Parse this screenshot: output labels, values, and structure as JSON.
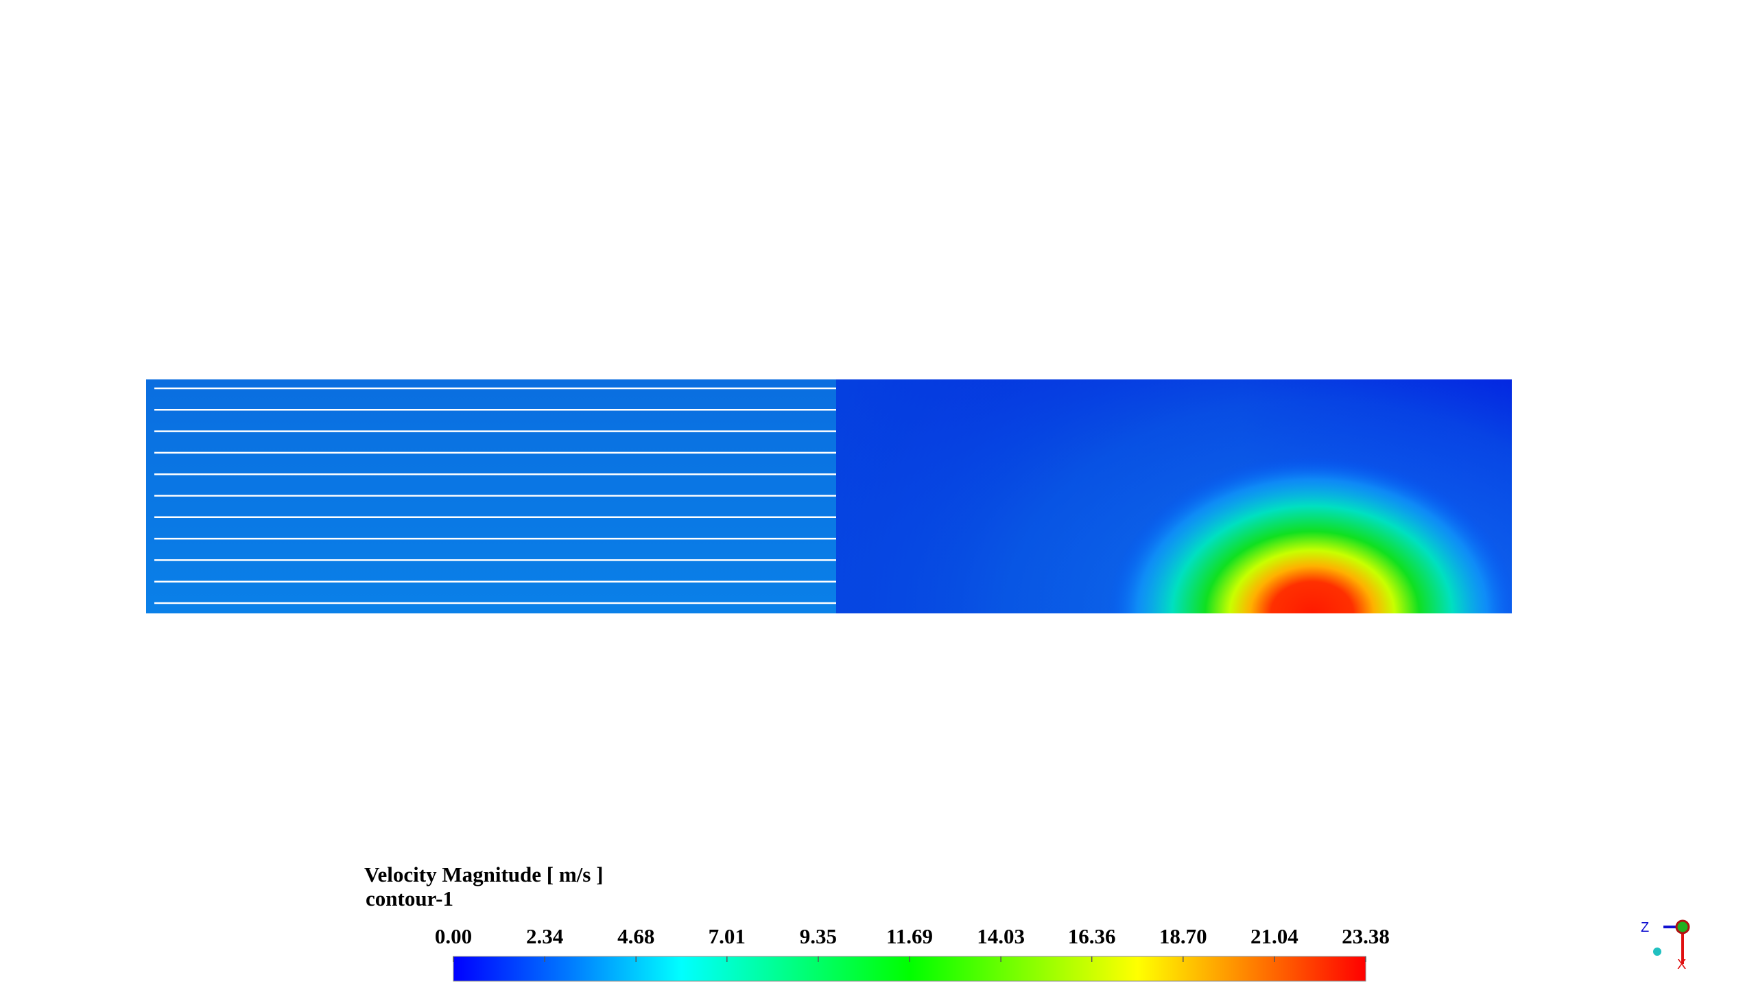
{
  "colorbar": {
    "title": "Velocity Magnitude [ m/s ]",
    "subtitle": "contour-1",
    "range": [
      0,
      23.38
    ],
    "ticks": [
      {
        "value": 0,
        "label": "0.00"
      },
      2.34,
      4.68,
      7.01,
      9.35,
      11.69,
      14.03,
      16.36,
      {
        "value": 18.7,
        "label": "18.70"
      },
      21.04,
      23.38
    ],
    "colors": [
      "#0000ff",
      "#0078ff",
      "#00ffff",
      "#00ff80",
      "#00ff00",
      "#80ff00",
      "#ffff00",
      "#ff8000",
      "#ff0000"
    ]
  },
  "triad": {
    "labels": [
      "Z",
      "X"
    ]
  }
}
